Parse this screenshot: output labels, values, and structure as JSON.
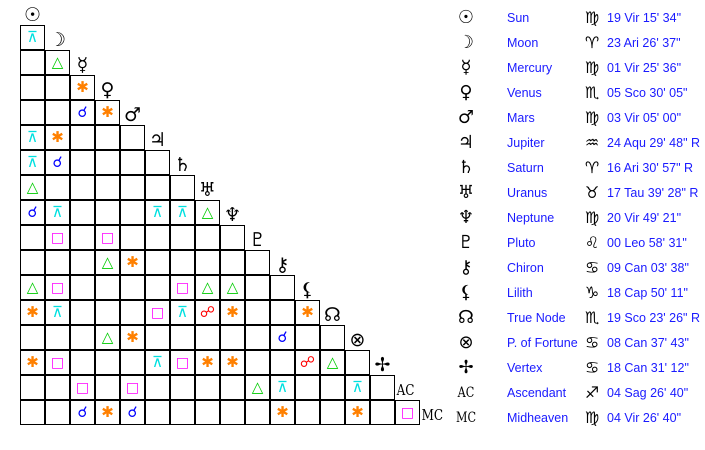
{
  "bodies": [
    {
      "glyph": "☉",
      "name": "Sun",
      "sign": "♍",
      "position": "19 Vir 15' 34\""
    },
    {
      "glyph": "☽",
      "name": "Moon",
      "sign": "♈",
      "position": "23 Ari 26' 37\""
    },
    {
      "glyph": "☿",
      "name": "Mercury",
      "sign": "♍",
      "position": "01 Vir 25' 36\""
    },
    {
      "glyph": "♀",
      "name": "Venus",
      "sign": "♏",
      "position": "05 Sco 30' 05\""
    },
    {
      "glyph": "♂",
      "name": "Mars",
      "sign": "♍",
      "position": "03 Vir 05' 00\""
    },
    {
      "glyph": "♃",
      "name": "Jupiter",
      "sign": "♒",
      "position": "24 Aqu 29' 48\" R"
    },
    {
      "glyph": "♄",
      "name": "Saturn",
      "sign": "♈",
      "position": "16 Ari 30' 57\" R"
    },
    {
      "glyph": "♅",
      "name": "Uranus",
      "sign": "♉",
      "position": "17 Tau 39' 28\" R"
    },
    {
      "glyph": "♆",
      "name": "Neptune",
      "sign": "♍",
      "position": "20 Vir 49' 21\""
    },
    {
      "glyph": "♇",
      "name": "Pluto",
      "sign": "♌",
      "position": "00 Leo 58' 31\""
    },
    {
      "glyph": "⚷",
      "name": "Chiron",
      "sign": "♋",
      "position": "09 Can 03' 38\""
    },
    {
      "glyph": "⚸",
      "name": "Lilith",
      "sign": "♑",
      "position": "18 Cap 50' 11\""
    },
    {
      "glyph": "☊",
      "name": "True Node",
      "sign": "♏",
      "position": "19 Sco 23' 26\" R"
    },
    {
      "glyph": "⊗",
      "name": "P. of Fortune",
      "sign": "♋",
      "position": "08 Can 37' 43\""
    },
    {
      "glyph": "✢",
      "name": "Vertex",
      "sign": "♋",
      "position": "18 Can 31' 12\""
    },
    {
      "glyph": "AC",
      "name": "Ascendant",
      "sign": "♐",
      "position": "04 Sag 26' 40\""
    },
    {
      "glyph": "MC",
      "name": "Midheaven",
      "sign": "♍",
      "position": "04 Vir 26' 40\""
    }
  ],
  "aspect_types": {
    "C": {
      "name": "conjunction",
      "symbol": "☌",
      "color": "#0000ff"
    },
    "S": {
      "name": "sextile",
      "symbol": "✱",
      "color": "#ff8000"
    },
    "Sq": {
      "name": "square",
      "symbol": "□",
      "color": "#ff00ff"
    },
    "T": {
      "name": "trine",
      "symbol": "△",
      "color": "#00cc00"
    },
    "Q": {
      "name": "quincunx",
      "symbol": "⊼",
      "color": "#00e0e0"
    },
    "O": {
      "name": "opposition",
      "symbol": "☍",
      "color": "#ff0000"
    }
  },
  "aspect_grid": [
    [
      "Q"
    ],
    [
      "",
      "T"
    ],
    [
      "",
      "",
      "S"
    ],
    [
      "",
      "",
      "C",
      "S"
    ],
    [
      "Q",
      "S",
      "",
      "",
      ""
    ],
    [
      "Q",
      "C",
      "",
      "",
      "",
      ""
    ],
    [
      "T",
      "",
      "",
      "",
      "",
      "",
      ""
    ],
    [
      "C",
      "Q",
      "",
      "",
      "",
      "Q",
      "Q",
      "T"
    ],
    [
      "",
      "Sq",
      "",
      "Sq",
      "",
      "",
      "",
      "",
      ""
    ],
    [
      "",
      "",
      "",
      "T",
      "S",
      "",
      "",
      "",
      "",
      ""
    ],
    [
      "T",
      "Sq",
      "",
      "",
      "",
      "",
      "Sq",
      "T",
      "T",
      "",
      ""
    ],
    [
      "S",
      "Q",
      "",
      "",
      "",
      "Sq",
      "Q",
      "O",
      "S",
      "",
      "",
      "S"
    ],
    [
      "",
      "",
      "",
      "T",
      "S",
      "",
      "",
      "",
      "",
      "",
      "C",
      "",
      ""
    ],
    [
      "S",
      "Sq",
      "",
      "",
      "",
      "Q",
      "Sq",
      "S",
      "S",
      "",
      "",
      "O",
      "T",
      ""
    ],
    [
      "",
      "",
      "Sq",
      "",
      "Sq",
      "",
      "",
      "",
      "",
      "T",
      "Q",
      "",
      "",
      "Q",
      ""
    ],
    [
      "",
      "",
      "C",
      "S",
      "C",
      "",
      "",
      "",
      "",
      "",
      "S",
      "",
      "",
      "S",
      "",
      "Sq"
    ]
  ]
}
